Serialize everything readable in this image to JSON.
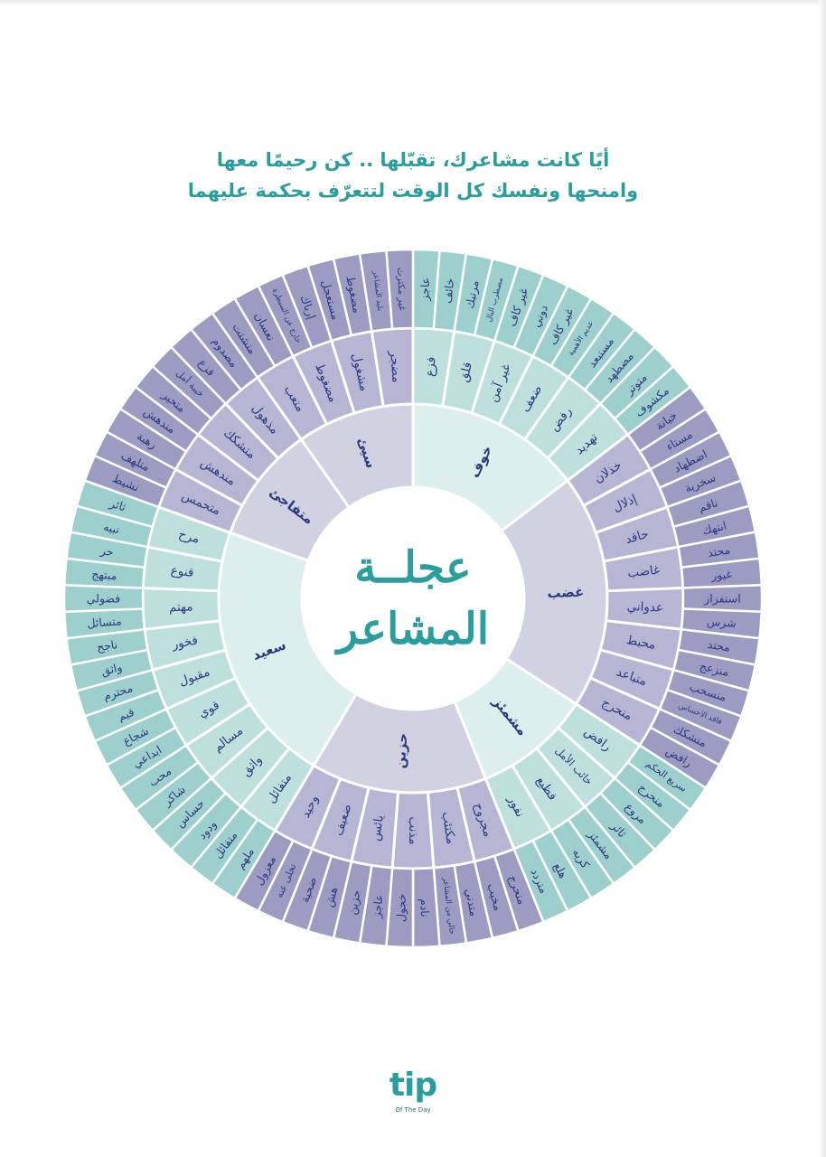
{
  "headline": [
    "أيًا كانت مشاعرك، تقبّلها .. كن رحيمًا معها",
    "وامنحها ونفسك كل الوقت لتتعرّف بحكمة عليهما"
  ],
  "center_title": [
    "عجلــة",
    "المشاعر"
  ],
  "logo": {
    "text": "tip",
    "subtext": "Of The Day"
  },
  "colors": {
    "accent": "#2a9e9c",
    "label_text": "#2d3a80",
    "teal": {
      "core": "#dcefed",
      "middle": "#bde0dd",
      "outer": "#9dcfcd"
    },
    "purple": {
      "core": "#d1d1e2",
      "middle": "#b6b6d4",
      "outer": "#9c9cc3"
    }
  },
  "wheel": [
    {
      "label": "خوف",
      "tone": "teal",
      "middle": [
        {
          "label": "فزع",
          "outer": [
            "عاجز",
            "خائف"
          ]
        },
        {
          "label": "قلق",
          "outer": [
            "مرتبك",
            "مضطرب البال"
          ]
        },
        {
          "label": "غير آمن",
          "outer": [
            "غير كاف",
            "دوني"
          ]
        },
        {
          "label": "ضعف",
          "outer": [
            "غير كاف",
            "عديم الأهمية"
          ]
        },
        {
          "label": "رفض",
          "outer": [
            "مستبعد",
            "مضطهد"
          ]
        },
        {
          "label": "تهديد",
          "outer": [
            "متوتر",
            "مكشوف"
          ]
        }
      ]
    },
    {
      "label": "غضب",
      "tone": "purple",
      "middle": [
        {
          "label": "خذلان",
          "outer": [
            "خيانة",
            "مستاء"
          ]
        },
        {
          "label": "إذلال",
          "outer": [
            "اضطهاد",
            "سخرية"
          ]
        },
        {
          "label": "حاقد",
          "outer": [
            "ناقم",
            "انتهك"
          ]
        },
        {
          "label": "غاضب",
          "outer": [
            "محتد",
            "غيور"
          ]
        },
        {
          "label": "عدواني",
          "outer": [
            "استفزاز",
            "شرس"
          ]
        },
        {
          "label": "محبط",
          "outer": [
            "محتد",
            "منزعج"
          ]
        },
        {
          "label": "متباعد",
          "outer": [
            "منسحب",
            "فاقد الاحساس"
          ]
        },
        {
          "label": "منحرج",
          "outer": [
            "متشكك",
            "رافض"
          ]
        }
      ]
    },
    {
      "label": "مشمئز",
      "tone": "teal",
      "middle": [
        {
          "label": "رافض",
          "outer": [
            "سريع الحكم",
            "منحرج"
          ]
        },
        {
          "label": "خائب الأمل",
          "outer": [
            "مروع",
            "ثائر"
          ]
        },
        {
          "label": "فظيع",
          "outer": [
            "مشمئز",
            "كريه"
          ]
        },
        {
          "label": "نفور",
          "outer": [
            "هلع",
            "متردد"
          ]
        }
      ]
    },
    {
      "label": "حزين",
      "tone": "purple",
      "middle": [
        {
          "label": "مجروح",
          "outer": [
            "منحرج",
            "مخيب"
          ]
        },
        {
          "label": "مكتئب",
          "outer": [
            "متدني",
            "خالي من المشاعر"
          ]
        },
        {
          "label": "مذنب",
          "outer": [
            "نادم",
            "خجول"
          ]
        },
        {
          "label": "يائس",
          "outer": [
            "عاجز",
            "حزين"
          ]
        },
        {
          "label": "ضعيف",
          "outer": [
            "هش",
            "ضحية"
          ]
        },
        {
          "label": "وحيد",
          "outer": [
            "تخلى عنه",
            "معزول"
          ]
        }
      ]
    },
    {
      "label": "سعيد",
      "tone": "teal",
      "middle": [
        {
          "label": "متفائل",
          "outer": [
            "ملهم",
            "متفائل"
          ]
        },
        {
          "label": "واثق",
          "outer": [
            "ودود",
            "حساس"
          ]
        },
        {
          "label": "مسالم",
          "outer": [
            "شاكر",
            "محب"
          ]
        },
        {
          "label": "قوي",
          "outer": [
            "ابداعي",
            "شجاع"
          ]
        },
        {
          "label": "مقبول",
          "outer": [
            "قيم",
            "محترم"
          ]
        },
        {
          "label": "فخور",
          "outer": [
            "واثق",
            "ناجح"
          ]
        },
        {
          "label": "مهتم",
          "outer": [
            "متسائل",
            "فضولي"
          ]
        },
        {
          "label": "قنوع",
          "outer": [
            "مبتهج",
            "حر"
          ]
        },
        {
          "label": "مرح",
          "outer": [
            "نبيه",
            "ثائر"
          ]
        }
      ]
    },
    {
      "label": "متفاجئ",
      "tone": "purple",
      "middle": [
        {
          "label": "متحمس",
          "outer": [
            "نشيط",
            "متلهف"
          ]
        },
        {
          "label": "مندهش",
          "outer": [
            "رهبة",
            "مندهش"
          ]
        },
        {
          "label": "متشكك",
          "outer": [
            "متحير",
            "خيبة أمل"
          ]
        },
        {
          "label": "مذهول",
          "outer": [
            "فزع",
            "مصدوم"
          ]
        }
      ]
    },
    {
      "label": "سيئ",
      "tone": "purple",
      "middle": [
        {
          "label": "متعب",
          "outer": [
            "متشتت",
            "نعسان"
          ]
        },
        {
          "label": "مضغوط",
          "outer": [
            "خارج عن السيطرة",
            "إرباك"
          ]
        },
        {
          "label": "مشغول",
          "outer": [
            "مستعجل",
            "مضغوط"
          ]
        },
        {
          "label": "مضجر",
          "outer": [
            "بليد المشاعر",
            "غير مكترث"
          ]
        }
      ]
    }
  ]
}
